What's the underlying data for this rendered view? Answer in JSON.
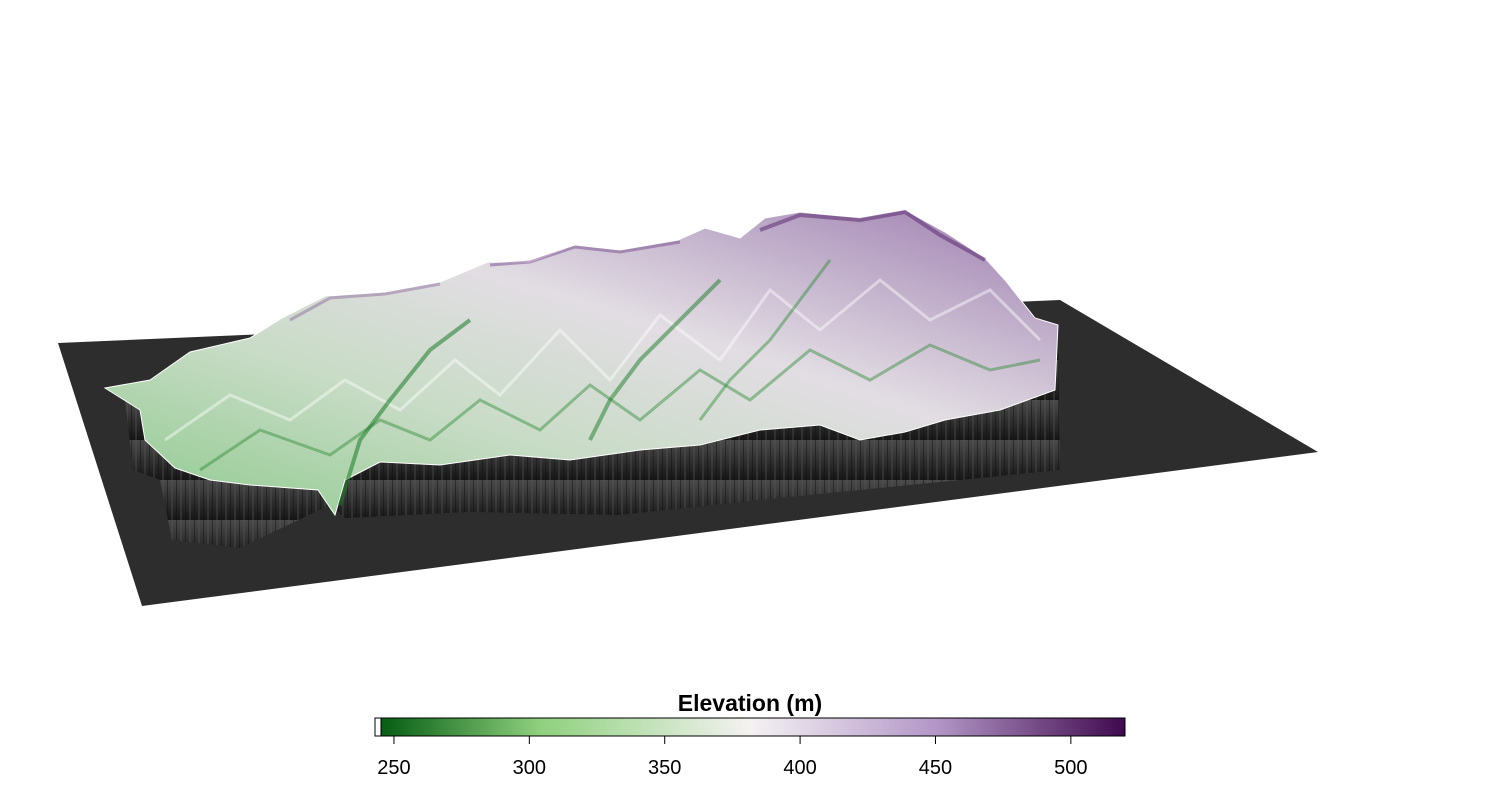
{
  "legend": {
    "title": "Elevation (m)",
    "min": 243,
    "max": 520,
    "ticks": [
      {
        "value": 250,
        "label": "250"
      },
      {
        "value": 300,
        "label": "300"
      },
      {
        "value": 350,
        "label": "350"
      },
      {
        "value": 400,
        "label": "400"
      },
      {
        "value": 450,
        "label": "450"
      },
      {
        "value": 500,
        "label": "500"
      }
    ],
    "colors": {
      "low": "#00580f",
      "mid_low": "#8fd07e",
      "mid": "#f4f2f2",
      "mid_high": "#b296c6",
      "high": "#3f0a4e"
    }
  },
  "scene": {
    "base_plane_color": "#2d2d2d",
    "cliff_color": "#1e1e1e"
  }
}
